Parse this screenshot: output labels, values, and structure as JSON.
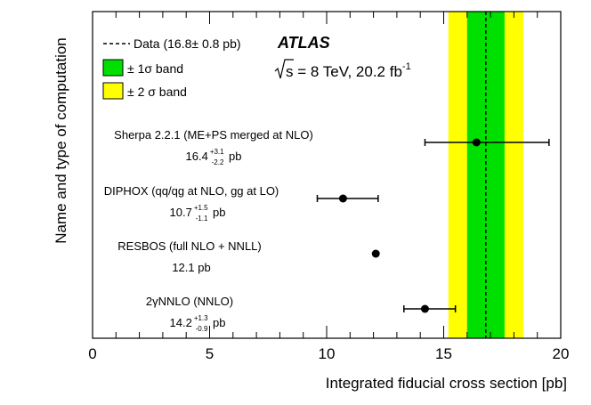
{
  "chart_data": {
    "type": "scatter",
    "title": "",
    "xlabel": "Integrated fiducial cross section [pb]",
    "ylabel": "Name and type of computation",
    "xlim": [
      0,
      20
    ],
    "x_ticks": [
      "0",
      "5",
      "10",
      "15",
      "20"
    ],
    "data": {
      "value": 16.8,
      "stat": 0.8,
      "label": "Data (16.8± 0.8 pb)"
    },
    "bands": [
      {
        "name": "± 1σ band",
        "low": 16.0,
        "high": 17.6,
        "color": "#00e000"
      },
      {
        "name": "± 2 σ band",
        "low": 15.2,
        "high": 18.4,
        "color": "#ffff00"
      }
    ],
    "experiment": "ATLAS",
    "energy_text": "s = 8 TeV, 20.2 fb",
    "energy_sup": "-1",
    "predictions": [
      {
        "name": "Sherpa 2.2.1 (ME+PS merged at NLO)",
        "value_text": "16.4",
        "up": "+3.1",
        "down": "-2.2",
        "unit": "pb",
        "value": 16.4,
        "low": 14.2,
        "high": 19.5
      },
      {
        "name": "DIPHOX (qq/qg at NLO, gg at LO)",
        "value_text": "10.7",
        "up": "+1.5",
        "down": "-1.1",
        "unit": "pb",
        "value": 10.7,
        "low": 9.6,
        "high": 12.2
      },
      {
        "name": "RESBOS (full NLO + NNLL)",
        "value_text": "12.1 pb",
        "up": "",
        "down": "",
        "unit": "",
        "value": 12.1,
        "low": 12.1,
        "high": 12.1
      },
      {
        "name": "2γNNLO (NNLO)",
        "value_text": "14.2",
        "up": "+1.3",
        "down": "-0.9",
        "unit": "pb",
        "value": 14.2,
        "low": 13.3,
        "high": 15.5
      }
    ]
  }
}
